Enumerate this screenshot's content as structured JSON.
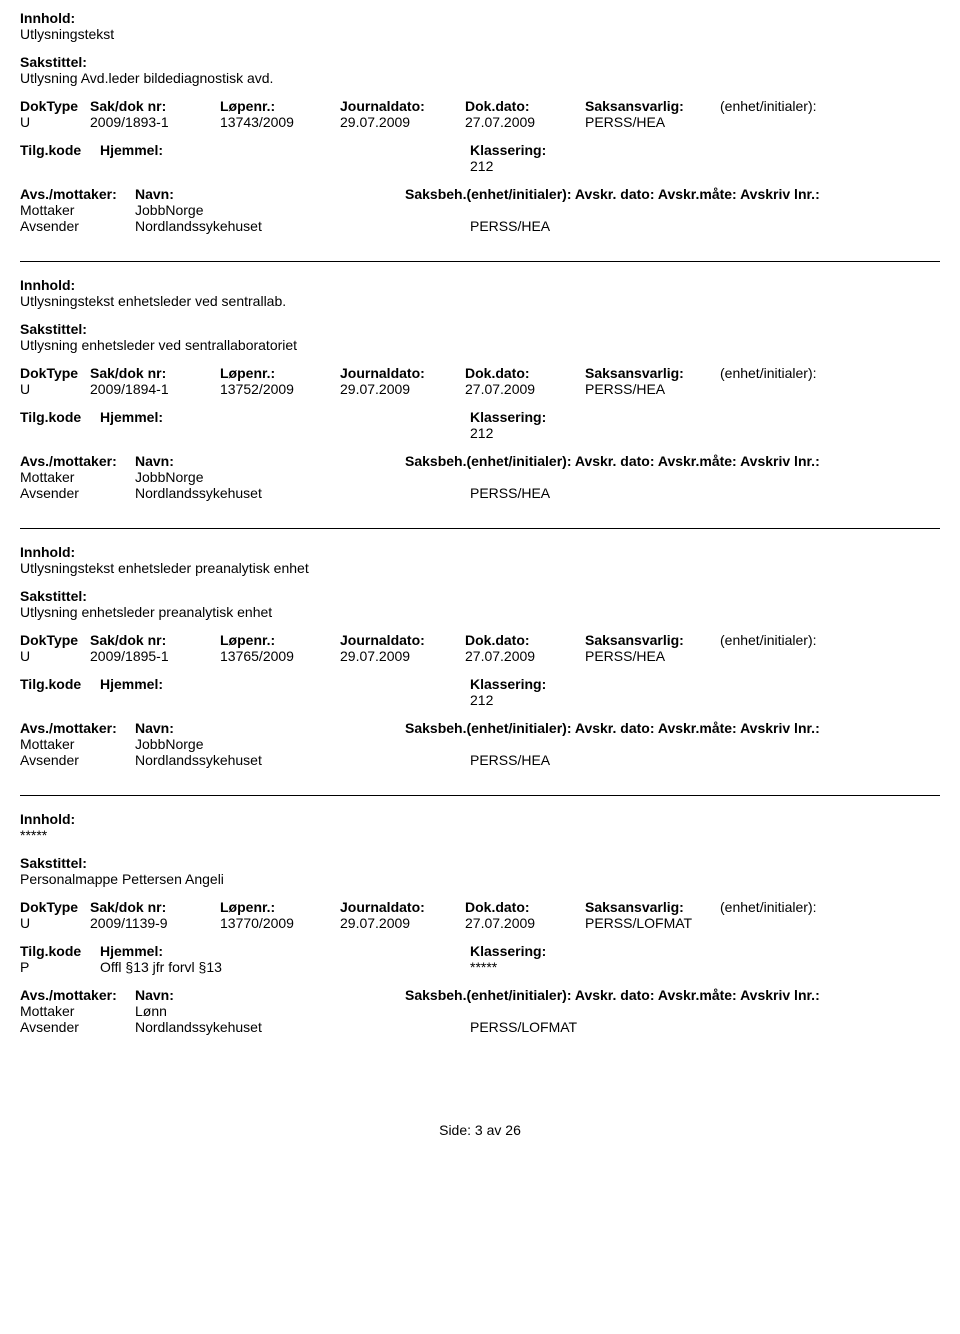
{
  "labels": {
    "innhold": "Innhold:",
    "sakstittel": "Sakstittel:",
    "doktype": "DokType",
    "sakdok": "Sak/dok nr:",
    "lopenr": "Løpenr.:",
    "journaldato": "Journaldato:",
    "dokdato": "Dok.dato:",
    "saksansvarlig": "Saksansvarlig:",
    "enhet": "(enhet/initialer):",
    "tilgkode": "Tilg.kode",
    "hjemmel": "Hjemmel:",
    "klassering": "Klassering:",
    "avsmottaker": "Avs./mottaker:",
    "navn": "Navn:",
    "saksbeh": "Saksbeh.(enhet/initialer):",
    "avskrdato": "Avskr. dato:",
    "avskrmate": "Avskr.måte:",
    "avskrivlnr": "Avskriv lnr.:",
    "mottaker": "Mottaker",
    "avsender": "Avsender"
  },
  "entries": [
    {
      "innhold": "Utlysningstekst",
      "sakstittel": "Utlysning Avd.leder bildediagnostisk avd.",
      "doktype": "U",
      "sakdok": "2009/1893-1",
      "lopenr": "13743/2009",
      "journaldato": "29.07.2009",
      "dokdato": "27.07.2009",
      "saksansvarlig": "PERSS/HEA",
      "enhet": "",
      "tilgkode": "",
      "hjemmel": "",
      "klassering": "212",
      "parties": [
        {
          "role": "Mottaker",
          "name": "JobbNorge",
          "code": ""
        },
        {
          "role": "Avsender",
          "name": "Nordlandssykehuset",
          "code": "PERSS/HEA"
        }
      ]
    },
    {
      "innhold": "Utlysningstekst enhetsleder ved sentrallab.",
      "sakstittel": "Utlysning enhetsleder ved sentrallaboratoriet",
      "doktype": "U",
      "sakdok": "2009/1894-1",
      "lopenr": "13752/2009",
      "journaldato": "29.07.2009",
      "dokdato": "27.07.2009",
      "saksansvarlig": "PERSS/HEA",
      "enhet": "",
      "tilgkode": "",
      "hjemmel": "",
      "klassering": "212",
      "parties": [
        {
          "role": "Mottaker",
          "name": "JobbNorge",
          "code": ""
        },
        {
          "role": "Avsender",
          "name": "Nordlandssykehuset",
          "code": "PERSS/HEA"
        }
      ]
    },
    {
      "innhold": "Utlysningstekst enhetsleder preanalytisk enhet",
      "sakstittel": "Utlysning enhetsleder preanalytisk enhet",
      "doktype": "U",
      "sakdok": "2009/1895-1",
      "lopenr": "13765/2009",
      "journaldato": "29.07.2009",
      "dokdato": "27.07.2009",
      "saksansvarlig": "PERSS/HEA",
      "enhet": "",
      "tilgkode": "",
      "hjemmel": "",
      "klassering": "212",
      "parties": [
        {
          "role": "Mottaker",
          "name": "JobbNorge",
          "code": ""
        },
        {
          "role": "Avsender",
          "name": "Nordlandssykehuset",
          "code": "PERSS/HEA"
        }
      ]
    },
    {
      "innhold": "*****",
      "sakstittel": "Personalmappe Pettersen Angeli",
      "doktype": "U",
      "sakdok": "2009/1139-9",
      "lopenr": "13770/2009",
      "journaldato": "29.07.2009",
      "dokdato": "27.07.2009",
      "saksansvarlig": "PERSS/LOFMAT",
      "enhet": "",
      "tilgkode": "P",
      "hjemmel": "Offl §13 jfr forvl §13",
      "klassering": "*****",
      "parties": [
        {
          "role": "Mottaker",
          "name": "Lønn",
          "code": ""
        },
        {
          "role": "Avsender",
          "name": "Nordlandssykehuset",
          "code": "PERSS/LOFMAT"
        }
      ]
    }
  ],
  "footer": {
    "side": "Side:",
    "page": "3",
    "av": "av",
    "total": "26"
  }
}
